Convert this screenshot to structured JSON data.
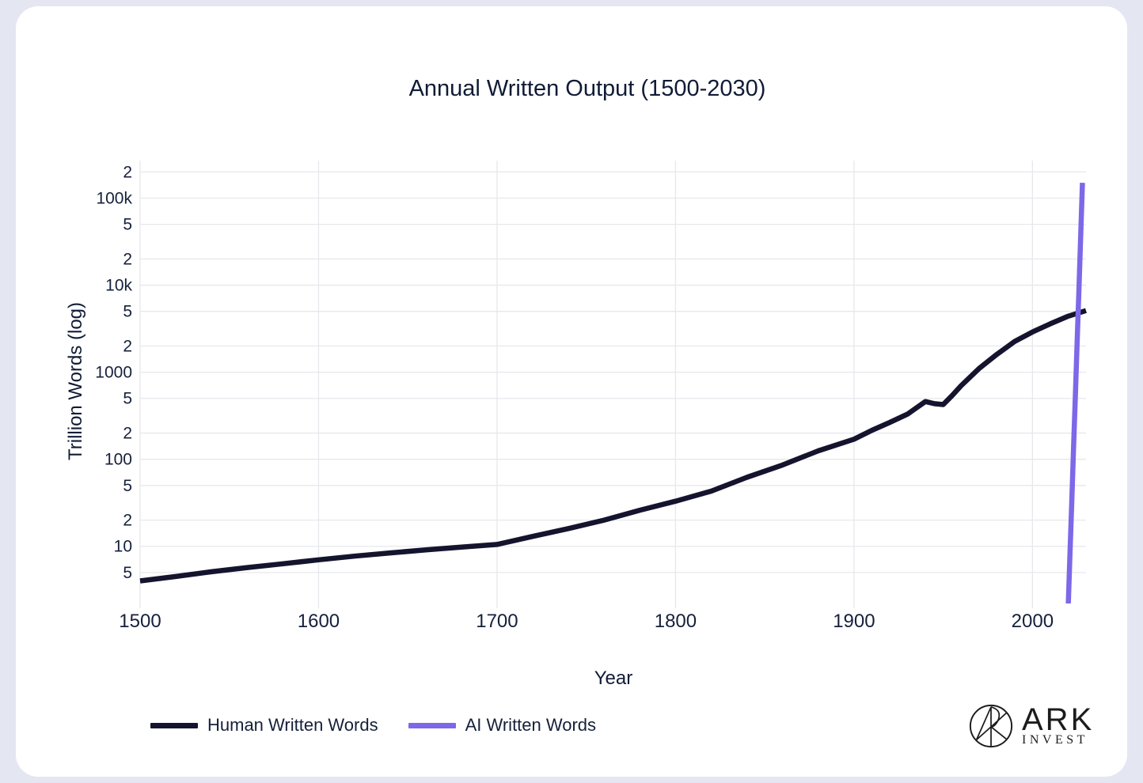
{
  "page": {
    "background_color": "#e4e7f1",
    "card_color": "#ffffff",
    "text_color": "#101b35"
  },
  "chart_data": {
    "type": "line",
    "title": "Annual Written Output (1500-2030)",
    "xlabel": "Year",
    "ylabel": "Trillion Words (log)",
    "x_scale": "linear",
    "y_scale": "log",
    "xlim": [
      1500,
      2030
    ],
    "ylim": [
      2.3,
      270000
    ],
    "grid": true,
    "grid_color": "#e7e8ec",
    "legend_position": "bottom-left",
    "x_ticks": [
      {
        "value": 1500,
        "label": "1500"
      },
      {
        "value": 1600,
        "label": "1600"
      },
      {
        "value": 1700,
        "label": "1700"
      },
      {
        "value": 1800,
        "label": "1800"
      },
      {
        "value": 1900,
        "label": "1900"
      },
      {
        "value": 2000,
        "label": "2000"
      }
    ],
    "y_ticks": [
      {
        "value": 200000,
        "label": "2"
      },
      {
        "value": 100000,
        "label": "100k"
      },
      {
        "value": 50000,
        "label": "5"
      },
      {
        "value": 20000,
        "label": "2"
      },
      {
        "value": 10000,
        "label": "10k"
      },
      {
        "value": 5000,
        "label": "5"
      },
      {
        "value": 2000,
        "label": "2"
      },
      {
        "value": 1000,
        "label": "1000"
      },
      {
        "value": 500,
        "label": "5"
      },
      {
        "value": 200,
        "label": "2"
      },
      {
        "value": 100,
        "label": "100"
      },
      {
        "value": 50,
        "label": "5"
      },
      {
        "value": 20,
        "label": "2"
      },
      {
        "value": 10,
        "label": "10"
      },
      {
        "value": 5,
        "label": "5"
      }
    ],
    "series": [
      {
        "name": "Human Written Words",
        "color": "#15142e",
        "points": [
          [
            1500,
            4
          ],
          [
            1520,
            4.5
          ],
          [
            1540,
            5.1
          ],
          [
            1560,
            5.7
          ],
          [
            1580,
            6.3
          ],
          [
            1600,
            7
          ],
          [
            1620,
            7.7
          ],
          [
            1640,
            8.4
          ],
          [
            1660,
            9.1
          ],
          [
            1680,
            9.8
          ],
          [
            1700,
            10.5
          ],
          [
            1720,
            13
          ],
          [
            1740,
            16
          ],
          [
            1760,
            20
          ],
          [
            1780,
            26
          ],
          [
            1800,
            33
          ],
          [
            1820,
            43
          ],
          [
            1840,
            62
          ],
          [
            1860,
            86
          ],
          [
            1880,
            125
          ],
          [
            1900,
            170
          ],
          [
            1910,
            215
          ],
          [
            1920,
            265
          ],
          [
            1930,
            330
          ],
          [
            1935,
            390
          ],
          [
            1940,
            460
          ],
          [
            1945,
            435
          ],
          [
            1950,
            425
          ],
          [
            1955,
            540
          ],
          [
            1960,
            700
          ],
          [
            1970,
            1100
          ],
          [
            1980,
            1600
          ],
          [
            1990,
            2250
          ],
          [
            2000,
            2900
          ],
          [
            2010,
            3600
          ],
          [
            2020,
            4400
          ],
          [
            2030,
            5100
          ]
        ]
      },
      {
        "name": "AI Written Words",
        "color": "#7d68e8",
        "points": [
          [
            2020,
            2
          ],
          [
            2021,
            8
          ],
          [
            2022,
            32
          ],
          [
            2023,
            130
          ],
          [
            2024,
            520
          ],
          [
            2025,
            2100
          ],
          [
            2026,
            8500
          ],
          [
            2027,
            35000
          ],
          [
            2028,
            150000
          ]
        ]
      }
    ]
  },
  "logo": {
    "primary": "ARK",
    "secondary": "INVEST"
  }
}
